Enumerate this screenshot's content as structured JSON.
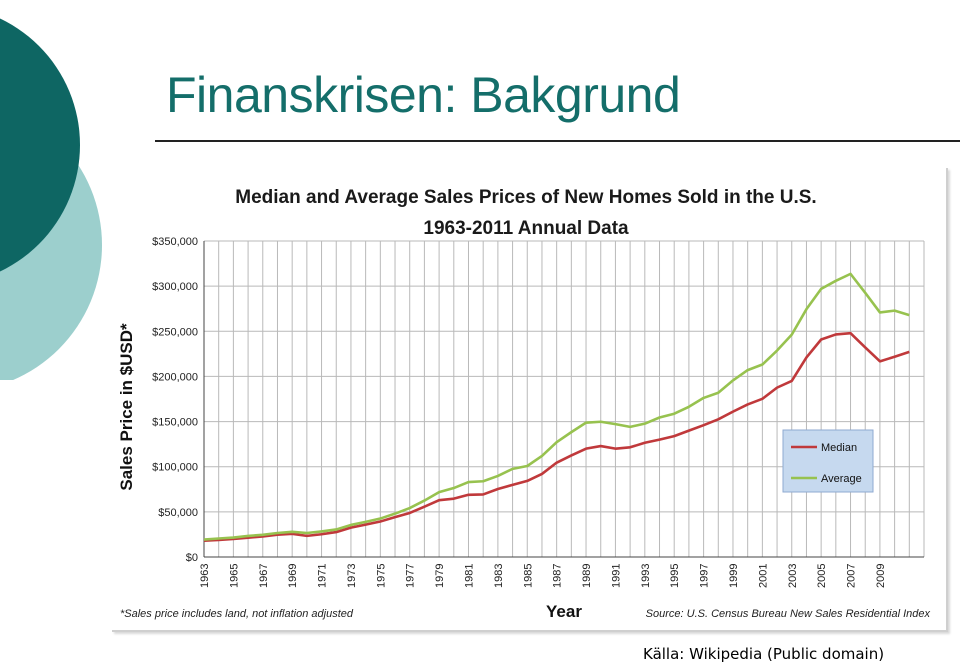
{
  "slide": {
    "title": "Finanskrisen: Bakgrund",
    "source": "Källa: Wikipedia (Public domain)"
  },
  "colors": {
    "title": "#146e6a",
    "circle_dark": "#0e6663",
    "circle_light": "#9ccfcd",
    "median": "#c0393b",
    "average": "#97c24f",
    "legend_bg": "#c6d9ef"
  },
  "chart_data": {
    "type": "line",
    "title": "Median and Average Sales Prices of New Homes Sold in the U.S.",
    "subtitle": "1963-2011 Annual Data",
    "xlabel": "Year",
    "ylabel": "Sales Price in $USD*",
    "footnote": "*Sales price includes land, not inflation adjusted",
    "source": "Source:  U.S. Census Bureau New Sales Residential Index",
    "ylim": [
      0,
      350000
    ],
    "y_ticks": [
      0,
      50000,
      100000,
      150000,
      200000,
      250000,
      300000,
      350000
    ],
    "y_tick_labels": [
      "$0",
      "$50,000",
      "$100,000",
      "$150,000",
      "$200,000",
      "$250,000",
      "$300,000",
      "$350,000"
    ],
    "x_tick_labels": [
      "1963",
      "1965",
      "1967",
      "1969",
      "1971",
      "1973",
      "1975",
      "1977",
      "1979",
      "1981",
      "1983",
      "1985",
      "1987",
      "1989",
      "1991",
      "1993",
      "1995",
      "1997",
      "1999",
      "2001",
      "2003",
      "2005",
      "2007",
      "2009"
    ],
    "grid": true,
    "legend": "right, inside plot",
    "x": [
      1963,
      1964,
      1965,
      1966,
      1967,
      1968,
      1969,
      1970,
      1971,
      1972,
      1973,
      1974,
      1975,
      1976,
      1977,
      1978,
      1979,
      1980,
      1981,
      1982,
      1983,
      1984,
      1985,
      1986,
      1987,
      1988,
      1989,
      1990,
      1991,
      1992,
      1993,
      1994,
      1995,
      1996,
      1997,
      1998,
      1999,
      2000,
      2001,
      2002,
      2003,
      2004,
      2005,
      2006,
      2007,
      2008,
      2009,
      2010,
      2011
    ],
    "series": [
      {
        "name": "Median",
        "values": [
          18000,
          18900,
          20000,
          21400,
          22700,
          24700,
          25600,
          23400,
          25200,
          27600,
          32500,
          35900,
          39300,
          44200,
          48800,
          55700,
          62900,
          64600,
          68900,
          69300,
          75300,
          79900,
          84300,
          92000,
          104500,
          112500,
          120000,
          122900,
          120000,
          121500,
          126500,
          130000,
          133900,
          140000,
          146000,
          152500,
          161000,
          169000,
          175200,
          187600,
          195000,
          221000,
          240900,
          246500,
          247900,
          232100,
          216700,
          221800,
          227200
        ]
      },
      {
        "name": "Average",
        "values": [
          19300,
          20500,
          21500,
          23300,
          24600,
          26600,
          27900,
          26600,
          28300,
          30500,
          35500,
          38900,
          42600,
          48000,
          54200,
          62500,
          71800,
          76400,
          83000,
          83900,
          89800,
          97600,
          100800,
          111900,
          127200,
          138300,
          148800,
          149800,
          147200,
          144100,
          147700,
          154500,
          158700,
          166400,
          176200,
          181900,
          195600,
          207000,
          213200,
          228700,
          246300,
          274500,
          297000,
          305900,
          313600,
          292600,
          270900,
          272900,
          267900
        ]
      }
    ]
  }
}
